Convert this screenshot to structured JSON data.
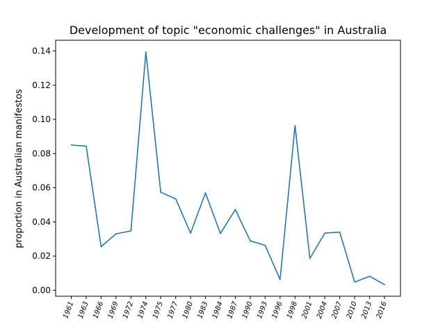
{
  "chart_data": {
    "type": "line",
    "title": "Development of topic \"economic challenges\" in Australia",
    "xlabel": "",
    "ylabel": "proportion in Australian manifestos",
    "categories": [
      "1961",
      "1963",
      "1966",
      "1969",
      "1972",
      "1974",
      "1975",
      "1977",
      "1980",
      "1983",
      "1984",
      "1987",
      "1990",
      "1993",
      "1996",
      "1998",
      "2001",
      "2004",
      "2007",
      "2010",
      "2013",
      "2016"
    ],
    "series": [
      {
        "color": "#1f77b4",
        "values": [
          0.085,
          0.0843,
          0.0255,
          0.033,
          0.0347,
          0.1395,
          0.0573,
          0.0535,
          0.0334,
          0.057,
          0.0332,
          0.0472,
          0.0289,
          0.0263,
          0.0063,
          0.0963,
          0.0186,
          0.0334,
          0.034,
          0.0048,
          0.0082,
          0.0033
        ]
      }
    ],
    "yticks": [
      "0.00",
      "0.02",
      "0.04",
      "0.06",
      "0.08",
      "0.10",
      "0.12",
      "0.14"
    ],
    "ylim": [
      -0.0035,
      0.1463
    ],
    "grid": false,
    "legend": "none"
  }
}
